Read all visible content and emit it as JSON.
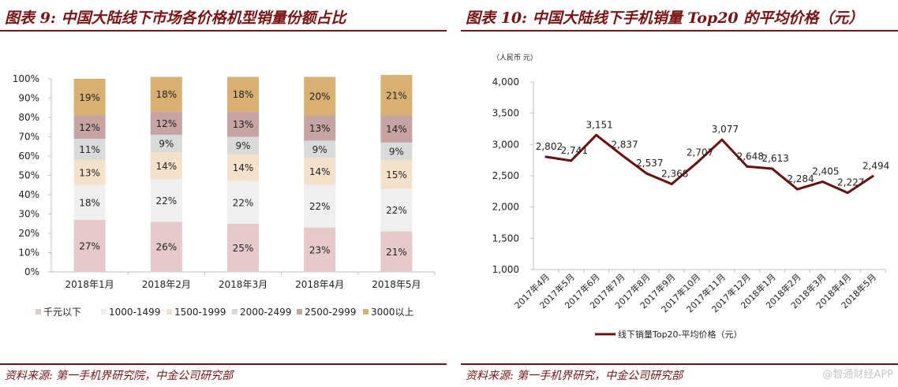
{
  "left": {
    "title": "图表 9:  中国大陆线下市场各价格机型销量份额占比",
    "source": "资料来源:  第一手机界研究院，中金公司研究部"
  },
  "right": {
    "title": "图表 10:  中国大陆线下手机销量 Top20 的平均价格（元）",
    "source": "资料来源:  第一手机界研究，中金公司研究部"
  },
  "watermark": "@智通财经APP",
  "chart_data": [
    {
      "type": "bar",
      "stacked": true,
      "percent": true,
      "categories": [
        "2018年1月",
        "2018年2月",
        "2018年3月",
        "2018年4月",
        "2018年5月"
      ],
      "ylim": [
        0,
        100
      ],
      "yticks": [
        "0%",
        "10%",
        "20%",
        "30%",
        "40%",
        "50%",
        "60%",
        "70%",
        "80%",
        "90%",
        "100%"
      ],
      "legend_position": "bottom",
      "series": [
        {
          "name": "千元以下",
          "color": "#e6c9cb",
          "values": [
            27,
            26,
            25,
            23,
            21
          ]
        },
        {
          "name": "1000-1499",
          "color": "#efefef",
          "values": [
            18,
            22,
            22,
            22,
            22
          ]
        },
        {
          "name": "1500-1999",
          "color": "#f3e1cc",
          "values": [
            13,
            14,
            14,
            14,
            15
          ]
        },
        {
          "name": "2000-2499",
          "color": "#dadada",
          "values": [
            11,
            9,
            9,
            9,
            9
          ]
        },
        {
          "name": "2500-2999",
          "color": "#c5a4a2",
          "values": [
            12,
            12,
            13,
            13,
            14
          ]
        },
        {
          "name": "3000以上",
          "color": "#d8b071",
          "values": [
            19,
            18,
            18,
            20,
            21
          ]
        }
      ]
    },
    {
      "type": "line",
      "unit_label": "（人民币  元）",
      "categories": [
        "2017年4月",
        "2017年5月",
        "2017年6月",
        "2017年7月",
        "2017年8月",
        "2017年9月",
        "2017年10月",
        "2017年11月",
        "2017年12月",
        "2018年1月",
        "2018年2月",
        "2018年3月",
        "2018年4月",
        "2018年5月"
      ],
      "ylim": [
        1000,
        4000
      ],
      "yticks": [
        "1,000",
        "1,500",
        "2,000",
        "2,500",
        "3,000",
        "3,500",
        "4,000"
      ],
      "legend_position": "bottom",
      "series": [
        {
          "name": "线下销量Top20-平均价格（元）",
          "color": "#6b0f0f",
          "values": [
            2802,
            2741,
            3151,
            2837,
            2537,
            2368,
            2707,
            3077,
            2648,
            2613,
            2284,
            2405,
            2227,
            2494
          ],
          "labels": [
            "2,802",
            "2,741",
            "3,151",
            "2,837",
            "2,537",
            "2,368",
            "2,707",
            "3,077",
            "2,648",
            "2,613",
            "2,284",
            "2,405",
            "2,227",
            "2,494"
          ]
        }
      ]
    }
  ]
}
